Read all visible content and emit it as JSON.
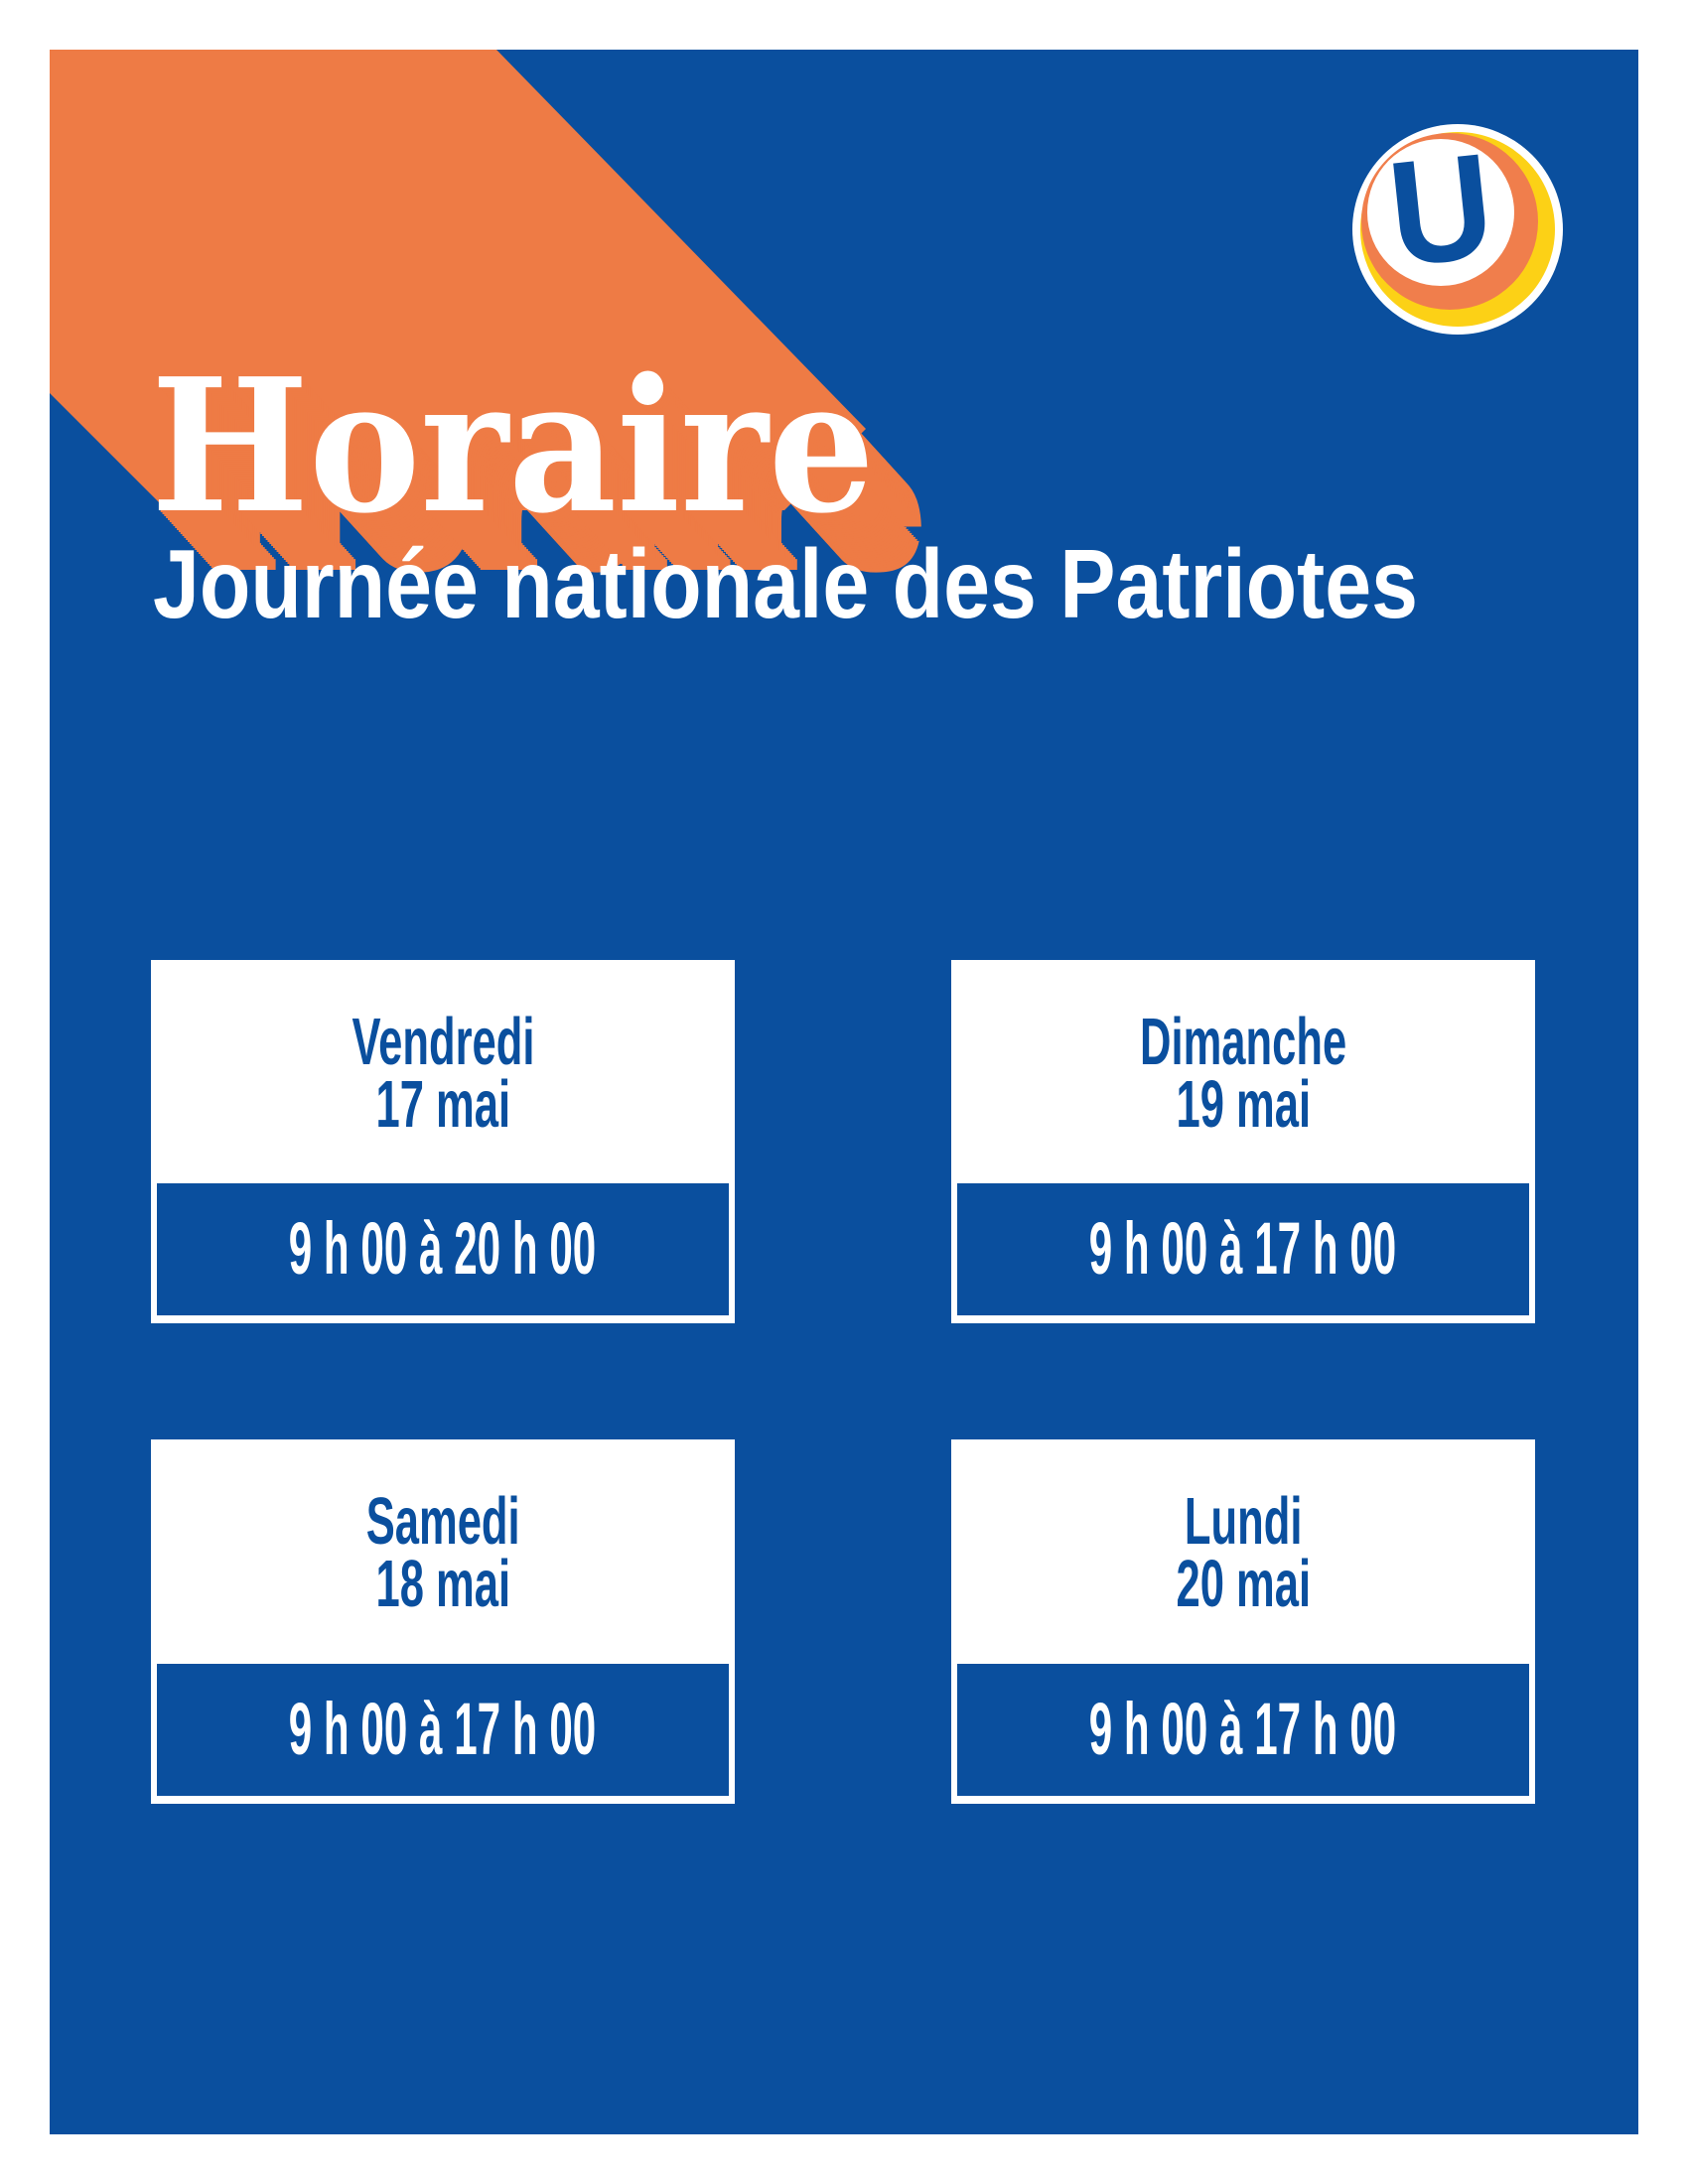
{
  "poster": {
    "title": "Horaire",
    "subtitle": "Journée nationale des Patriotes"
  },
  "logo": {
    "letter": "U"
  },
  "colors": {
    "blue": "#0A4F9E",
    "orange": "#EE7B45",
    "logo_yellow": "#FCD116",
    "logo_orange": "#F07E4C",
    "white": "#FFFFFF"
  },
  "cards": [
    {
      "day": "Vendredi",
      "date": "17 mai",
      "hours": "9 h 00 à 20 h 00"
    },
    {
      "day": "Dimanche",
      "date": "19 mai",
      "hours": "9 h 00 à 17 h 00"
    },
    {
      "day": "Samedi",
      "date": "18 mai",
      "hours": "9 h 00 à 17 h 00"
    },
    {
      "day": "Lundi",
      "date": "20 mai",
      "hours": "9 h 00 à 17 h 00"
    }
  ]
}
